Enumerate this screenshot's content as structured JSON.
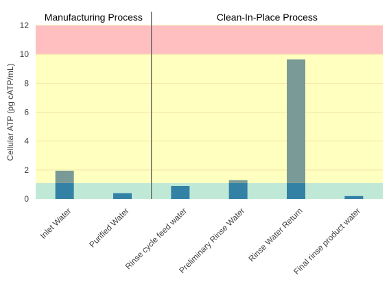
{
  "chart_data": {
    "type": "bar",
    "ylabel": "Cellular ATP (pg cATP/mL)",
    "ylim": [
      0,
      12
    ],
    "yticks": [
      0,
      2,
      4,
      6,
      8,
      10,
      12
    ],
    "grid": true,
    "legend": "none",
    "sections": [
      {
        "label": "Manufacturing Process",
        "categories": [
          "Inlet Water",
          "Purified Water"
        ]
      },
      {
        "label": "Clean-In-Place Process",
        "categories": [
          "Rinse cycle feed water",
          "Preliminary Rinse Water",
          "Rinse Water Return",
          "Final rinse product water"
        ]
      }
    ],
    "categories": [
      "Inlet Water",
      "Purified Water",
      "Rinse cycle feed water",
      "Preliminary Rinse Water",
      "Rinse Water Return",
      "Final rinse product water"
    ],
    "values": [
      1.95,
      0.4,
      0.9,
      1.3,
      9.65,
      0.2
    ],
    "bands": [
      {
        "from": 0,
        "to": 1.1,
        "color": "#bfe9d6"
      },
      {
        "from": 1.1,
        "to": 10,
        "color": "#ffffc0"
      },
      {
        "from": 10,
        "to": 12,
        "color": "#ffbfc0"
      }
    ],
    "colors": {
      "bar_low": "#3481a6",
      "bar_high": "#7a9a97",
      "gridline": "#f0e4a8",
      "divider": "#595959"
    }
  }
}
